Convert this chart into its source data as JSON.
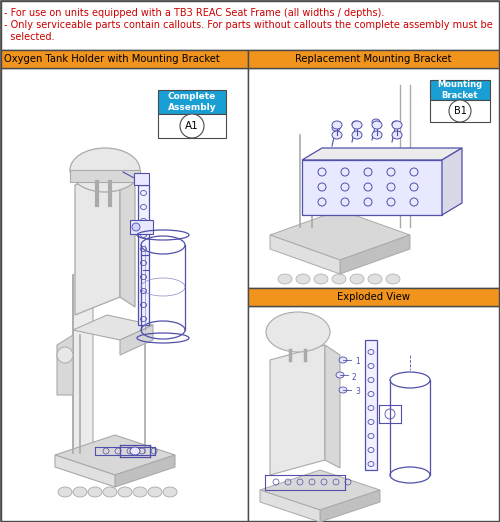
{
  "fig_width": 5.0,
  "fig_height": 5.22,
  "dpi": 100,
  "bg_color": "#ffffff",
  "border_color": "#4a4a4a",
  "orange_color": "#f0941d",
  "blue_callout_color": "#1a9fd4",
  "note_text_color": "#cc0000",
  "note_line1": "- For use on units equipped with a TB3 REAC Seat Frame (all widths / depths).",
  "note_line2": "- Only serviceable parts contain callouts. For parts without callouts the complete assembly must be",
  "note_line3": "  selected.",
  "header_left": "Oxygen Tank Holder with Mounting Bracket",
  "header_right": "Replacement Mounting Bracket",
  "header_exploded": "Exploded View",
  "callout_a1_label": "Complete\nAssembly",
  "callout_a1_num": "A1",
  "callout_b1_label": "Mounting\nBracket",
  "callout_b1_num": "B1",
  "lc": "#5050aa",
  "gc": "#aaaaaa",
  "gc2": "#bbbbbb",
  "lc_light": "#8888cc"
}
